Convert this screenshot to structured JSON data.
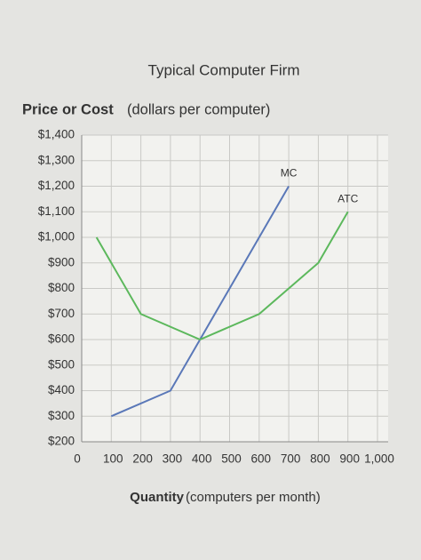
{
  "chart_data": {
    "type": "line",
    "title": "Typical Computer Firm",
    "y_label_bold": "Price or Cost",
    "y_label": "(dollars per computer)",
    "x_label_bold": "Quantity",
    "x_label": "(computers per month)",
    "xlim": [
      0,
      1000
    ],
    "xticks": [
      0,
      100,
      200,
      300,
      400,
      500,
      600,
      700,
      800,
      900,
      {
        "value": 1000,
        "label": "1,000"
      }
    ],
    "ylim": [
      200,
      1400
    ],
    "yticks": [
      {
        "value": 200,
        "label": "$200"
      },
      {
        "value": 300,
        "label": "$300"
      },
      {
        "value": 400,
        "label": "$400"
      },
      {
        "value": 500,
        "label": "$500"
      },
      {
        "value": 600,
        "label": "$600"
      },
      {
        "value": 700,
        "label": "$700"
      },
      {
        "value": 800,
        "label": "$800"
      },
      {
        "value": 900,
        "label": "$900"
      },
      {
        "value": 1000,
        "label": "$1,000"
      },
      {
        "value": 1100,
        "label": "$1,100"
      },
      {
        "value": 1200,
        "label": "$1,200"
      },
      {
        "value": 1300,
        "label": "$1,300"
      },
      {
        "value": 1400,
        "label": "$1,400"
      }
    ],
    "grid": true,
    "series": [
      {
        "name": "MC",
        "color": "#5a78b8",
        "x": [
          100,
          300,
          600,
          700
        ],
        "values": [
          300,
          400,
          1000,
          1200
        ]
      },
      {
        "name": "ATC",
        "color": "#5cb85c",
        "x": [
          50,
          200,
          400,
          600,
          800,
          900
        ],
        "values": [
          1000,
          700,
          600,
          700,
          900,
          1100
        ]
      }
    ]
  }
}
